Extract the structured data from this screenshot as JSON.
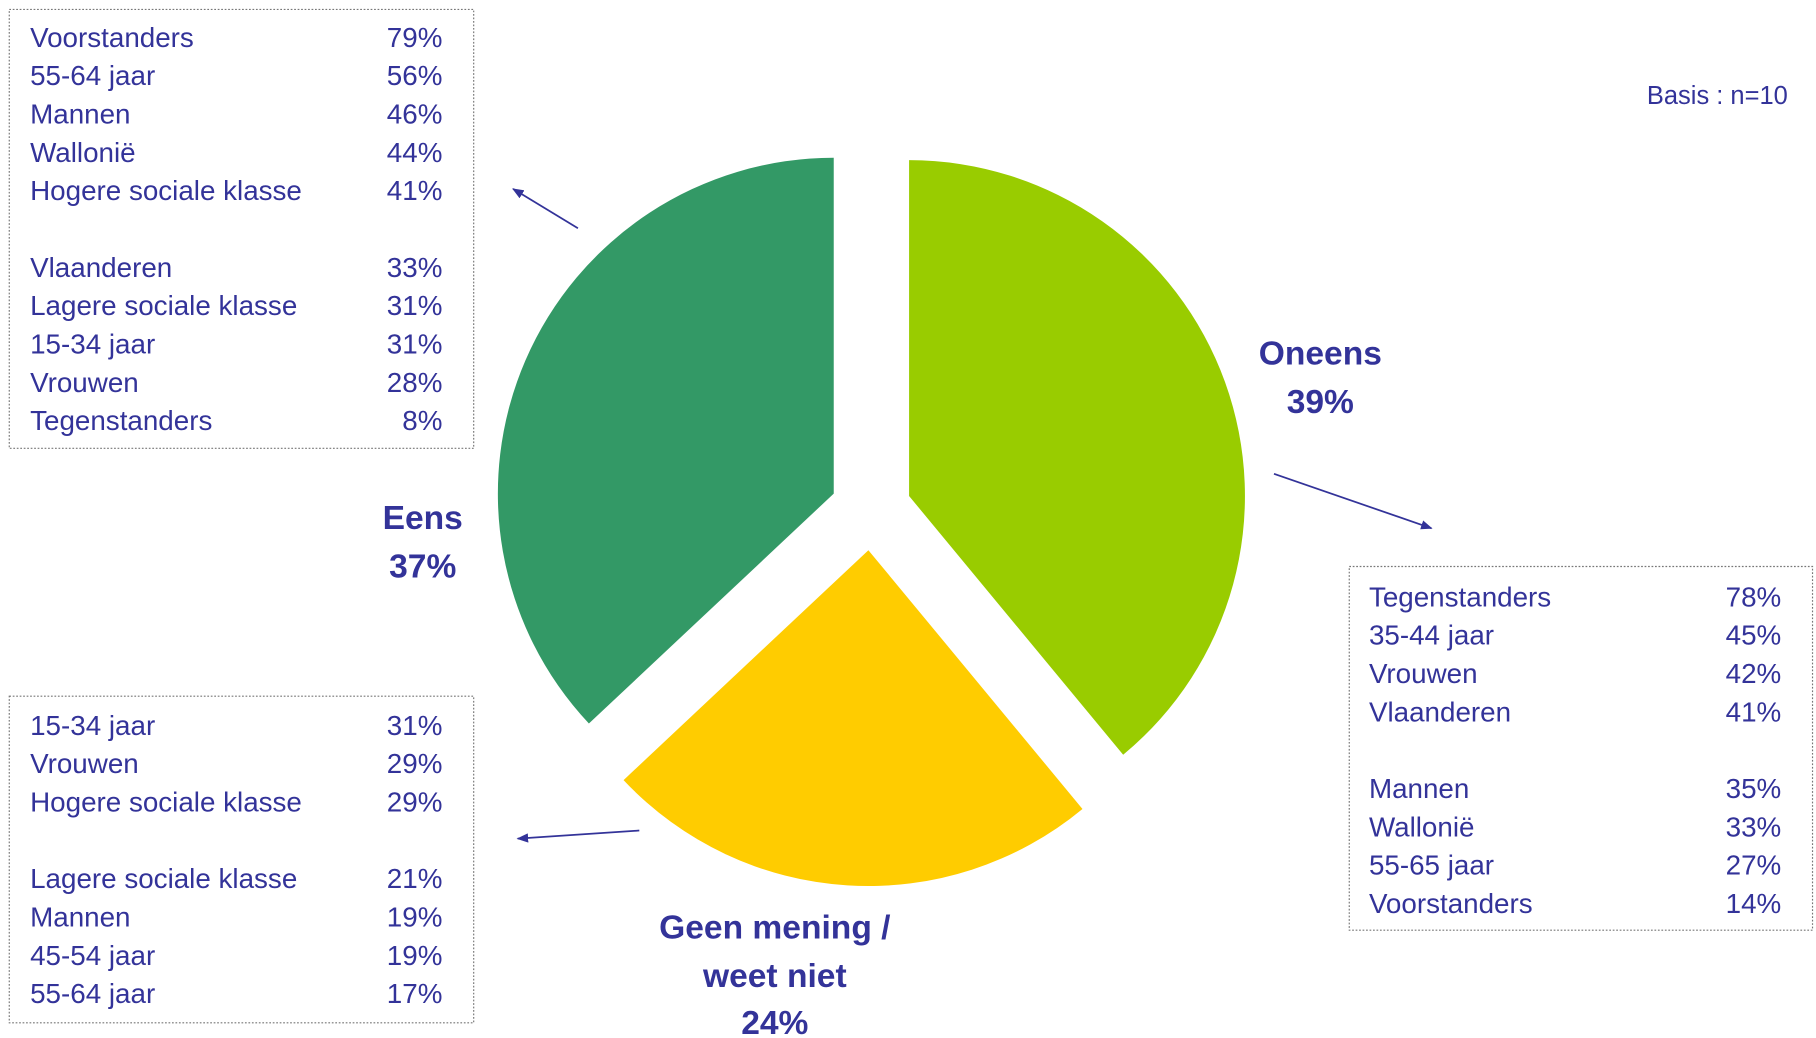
{
  "chart_data": {
    "type": "pie",
    "categories": [
      "Eens",
      "Oneens",
      "Geen mening / weet niet"
    ],
    "values": [
      37,
      39,
      24
    ],
    "value_labels": [
      "37%",
      "39%",
      "24%"
    ],
    "colors": [
      "#339966",
      "#99cc00",
      "#ffcc00"
    ]
  },
  "note": "Basis : n=10",
  "breakdowns": [
    {
      "groups": [
        [
          [
            "Voorstanders",
            "79%"
          ],
          [
            "55-64 jaar",
            "56%"
          ],
          [
            "Mannen",
            "46%"
          ],
          [
            "Wallonië",
            "44%"
          ],
          [
            "Hogere sociale klasse",
            "41%"
          ]
        ],
        [
          [
            "Vlaanderen",
            "33%"
          ],
          [
            "Lagere sociale klasse",
            "31%"
          ],
          [
            "15-34 jaar",
            "31%"
          ],
          [
            "Vrouwen",
            "28%"
          ],
          [
            "Tegenstanders",
            "8%"
          ]
        ]
      ]
    },
    {
      "groups": [
        [
          [
            "Tegenstanders",
            "78%"
          ],
          [
            "35-44 jaar",
            "45%"
          ],
          [
            "Vrouwen",
            "42%"
          ],
          [
            "Vlaanderen",
            "41%"
          ]
        ],
        [
          [
            "Mannen",
            "35%"
          ],
          [
            "Wallonië",
            "33%"
          ],
          [
            "55-65 jaar",
            "27%"
          ],
          [
            "Voorstanders",
            "14%"
          ]
        ]
      ]
    },
    {
      "groups": [
        [
          [
            "15-34 jaar",
            "31%"
          ],
          [
            "Vrouwen",
            "29%"
          ],
          [
            "Hogere sociale klasse",
            "29%"
          ]
        ],
        [
          [
            "Lagere sociale klasse",
            "21%"
          ],
          [
            "Mannen",
            "19%"
          ],
          [
            "45-54 jaar",
            "19%"
          ],
          [
            "55-64 jaar",
            "17%"
          ]
        ]
      ]
    }
  ]
}
